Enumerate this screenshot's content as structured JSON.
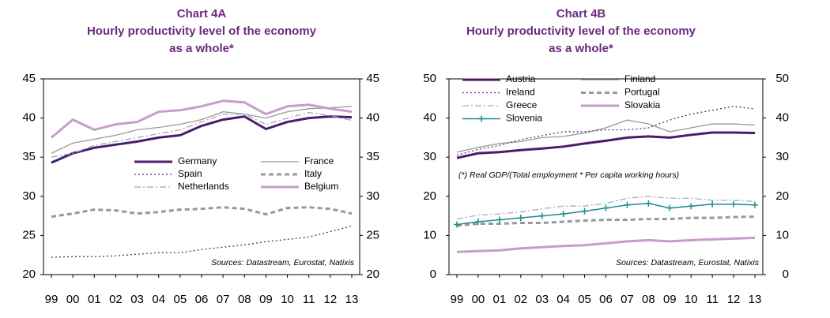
{
  "chart_data": [
    {
      "type": "line",
      "title": "Chart 4A",
      "subtitle": [
        "Hourly productivity level of the economy",
        "as a whole*"
      ],
      "source": "Sources: Datastream, Eurostat, Natixis",
      "categories": [
        "99",
        "00",
        "01",
        "02",
        "03",
        "04",
        "05",
        "06",
        "07",
        "08",
        "09",
        "10",
        "11",
        "12",
        "13"
      ],
      "ylim": [
        20,
        45
      ],
      "yticks": [
        20,
        25,
        30,
        35,
        40,
        45
      ],
      "y2lim": [
        20,
        45
      ],
      "y2ticks": [
        20,
        25,
        30,
        35,
        40,
        45
      ],
      "legend": "center",
      "series": [
        {
          "name": "Germany",
          "color": "#4b1c6b",
          "style": "solid",
          "linewidth": 3,
          "values": [
            34.3,
            35.5,
            36.2,
            36.6,
            37,
            37.5,
            37.8,
            39,
            39.8,
            40.2,
            38.6,
            39.5,
            40,
            40.2,
            40.1
          ]
        },
        {
          "name": "France",
          "color": "#999999",
          "style": "solid",
          "linewidth": 1.3,
          "values": [
            35.5,
            36.8,
            37.3,
            37.8,
            38.5,
            38.8,
            39.2,
            39.8,
            40.8,
            40.5,
            40,
            40.8,
            41.2,
            41.3,
            41.5
          ]
        },
        {
          "name": "Spain",
          "color": "#5a2a80",
          "style": "dotted",
          "linewidth": 1.3,
          "values": [
            22.2,
            22.3,
            22.3,
            22.4,
            22.6,
            22.8,
            22.8,
            23.2,
            23.5,
            23.8,
            24.2,
            24.5,
            24.8,
            25.5,
            26.2
          ]
        },
        {
          "name": "Italy",
          "color": "#999999",
          "style": "dashed",
          "linewidth": 3,
          "values": [
            27.4,
            27.8,
            28.3,
            28.2,
            27.8,
            28,
            28.3,
            28.4,
            28.6,
            28.4,
            27.7,
            28.5,
            28.6,
            28.4,
            27.8
          ]
        },
        {
          "name": "Netherlands",
          "color": "#a0a8b8",
          "style": "dashdot",
          "linewidth": 1.3,
          "values": [
            35,
            35.5,
            36.5,
            37,
            37.5,
            38,
            38.5,
            39.5,
            40.5,
            40.5,
            39.2,
            40,
            40.7,
            40.3,
            39.7
          ]
        },
        {
          "name": "Belgium",
          "color": "#c79ccb",
          "style": "solid",
          "linewidth": 3,
          "values": [
            37.5,
            39.8,
            38.5,
            39.2,
            39.5,
            40.8,
            41,
            41.5,
            42.2,
            42,
            40.5,
            41.5,
            41.7,
            41.2,
            40.8
          ]
        }
      ]
    },
    {
      "type": "line",
      "title": "Chart 4B",
      "subtitle": [
        "Hourly productivity level of the economy",
        "as a whole*"
      ],
      "source": "Sources: Datastream, Eurostat, Natixis",
      "note": "(*) Real GDP/(Total employment * Per capita working hours)",
      "categories": [
        "99",
        "00",
        "01",
        "02",
        "03",
        "04",
        "05",
        "06",
        "07",
        "08",
        "09",
        "10",
        "11",
        "12",
        "13"
      ],
      "ylim": [
        0,
        50
      ],
      "yticks": [
        0,
        10,
        20,
        30,
        40,
        50
      ],
      "y2lim": [
        0,
        50
      ],
      "y2ticks": [
        0,
        10,
        20,
        30,
        40,
        50
      ],
      "legend": "upper left",
      "series": [
        {
          "name": "Austria",
          "color": "#4b1c6b",
          "style": "solid",
          "linewidth": 3,
          "values": [
            29.8,
            31,
            31.3,
            31.8,
            32.2,
            32.7,
            33.5,
            34.2,
            35,
            35.3,
            35,
            35.7,
            36.3,
            36.3,
            36.2
          ]
        },
        {
          "name": "Finland",
          "color": "#999999",
          "style": "solid",
          "linewidth": 1.3,
          "values": [
            31.3,
            32.5,
            33.5,
            34,
            35,
            35.3,
            36.2,
            37.5,
            39.5,
            38.5,
            36.5,
            37.5,
            38.5,
            38.5,
            38.2
          ]
        },
        {
          "name": "Ireland",
          "color": "#5a2a80",
          "style": "dotted",
          "linewidth": 1.3,
          "values": [
            30.5,
            32,
            33,
            34.5,
            35.5,
            36.5,
            36.5,
            37,
            37,
            37.5,
            39.5,
            41,
            42,
            43,
            42.3
          ]
        },
        {
          "name": "Portugal",
          "color": "#999999",
          "style": "dashed",
          "linewidth": 3,
          "values": [
            12.5,
            13,
            13,
            13.2,
            13.2,
            13.5,
            13.8,
            14,
            14,
            14.2,
            14.2,
            14.5,
            14.5,
            14.7,
            14.8
          ]
        },
        {
          "name": "Greece",
          "color": "#aab0bb",
          "style": "dashdot",
          "linewidth": 1.3,
          "values": [
            14.2,
            15.2,
            15.5,
            16,
            16.8,
            17.5,
            17.5,
            18.2,
            19.5,
            20,
            19.5,
            19.5,
            19,
            19,
            18.7
          ]
        },
        {
          "name": "Slovakia",
          "color": "#c79ccb",
          "style": "solid",
          "linewidth": 3,
          "values": [
            5.8,
            6,
            6.2,
            6.7,
            7,
            7.3,
            7.5,
            8,
            8.5,
            8.8,
            8.5,
            8.8,
            9,
            9.2,
            9.4
          ]
        },
        {
          "name": "Slovenia",
          "color": "#1a8c8c",
          "style": "solid",
          "linewidth": 1.5,
          "marker": "+",
          "values": [
            12.8,
            13.5,
            14,
            14.5,
            15,
            15.5,
            16.2,
            17,
            17.8,
            18.2,
            17,
            17.5,
            18,
            18,
            17.8
          ]
        }
      ]
    }
  ]
}
